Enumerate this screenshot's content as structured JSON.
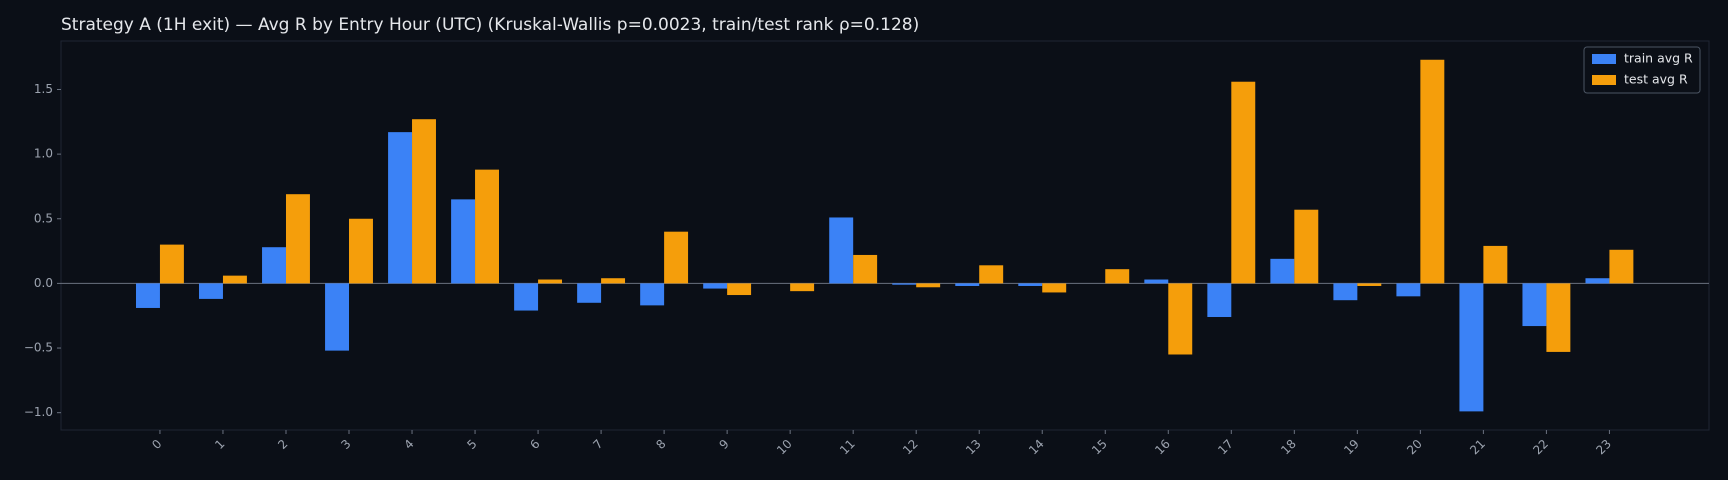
{
  "chart_data": {
    "type": "bar",
    "title": "Strategy A (1H exit) — Avg R by Entry Hour (UTC) (Kruskal-Wallis p=0.0023, train/test rank ρ=0.128)",
    "categories": [
      "0",
      "1",
      "2",
      "3",
      "4",
      "5",
      "6",
      "7",
      "8",
      "9",
      "10",
      "11",
      "12",
      "13",
      "14",
      "15",
      "16",
      "17",
      "18",
      "19",
      "20",
      "21",
      "22",
      "23"
    ],
    "series": [
      {
        "name": "train avg R",
        "color": "#3b82f6",
        "values": [
          -0.19,
          -0.12,
          0.28,
          -0.52,
          1.17,
          0.65,
          -0.21,
          -0.15,
          -0.17,
          -0.04,
          0.0,
          0.51,
          -0.01,
          -0.02,
          -0.02,
          0.0,
          0.03,
          -0.26,
          0.19,
          -0.13,
          -0.1,
          -0.99,
          -0.33,
          0.04
        ]
      },
      {
        "name": "test avg R",
        "color": "#f59e0b",
        "values": [
          0.3,
          0.06,
          0.69,
          0.5,
          1.27,
          0.88,
          0.03,
          0.04,
          0.4,
          -0.09,
          -0.06,
          0.22,
          -0.03,
          0.14,
          -0.07,
          0.11,
          -0.55,
          1.56,
          0.57,
          -0.02,
          1.73,
          0.29,
          -0.53,
          0.26
        ]
      }
    ],
    "ylim": [
      -1.134,
      1.875
    ],
    "yticks": [
      {
        "value": -1.0,
        "label": "−1.0"
      },
      {
        "value": -0.5,
        "label": "−0.5"
      },
      {
        "value": 0,
        "label": "0.0"
      },
      0.5,
      {
        "value": 1.0,
        "label": "1.0"
      },
      1.5
    ],
    "legend": "upper right"
  }
}
